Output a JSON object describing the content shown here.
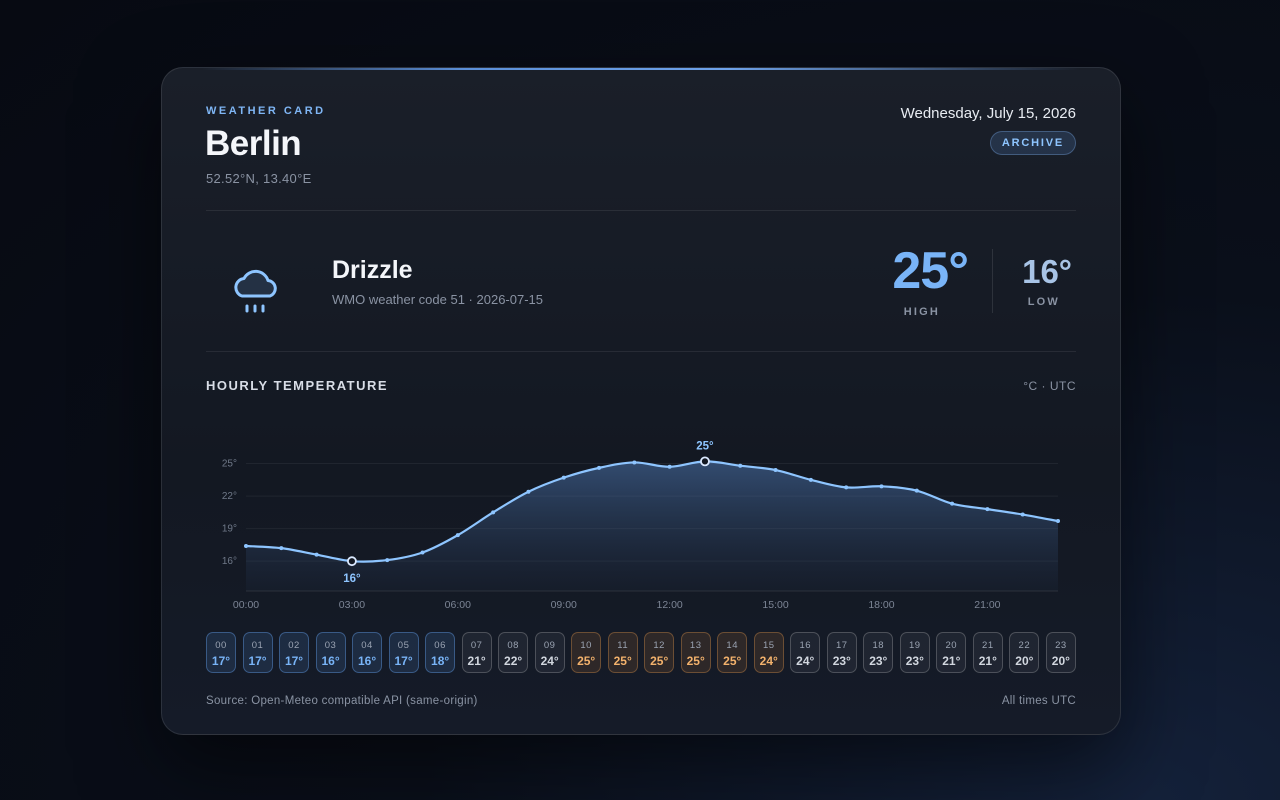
{
  "header": {
    "eyebrow": "WEATHER CARD",
    "city": "Berlin",
    "coordinates": "52.52°N, 13.40°E",
    "date": "Wednesday, July 15, 2026",
    "badge": "ARCHIVE"
  },
  "summary": {
    "condition": "Drizzle",
    "detail": "WMO weather code 51 · 2026-07-15",
    "high": "25°",
    "high_label": "HIGH",
    "low": "16°",
    "low_label": "LOW"
  },
  "chart_data": {
    "type": "line",
    "title": "HOURLY TEMPERATURE",
    "units_note": "°C · UTC",
    "categories": [
      "00:00",
      null,
      null,
      "03:00",
      null,
      null,
      "06:00",
      null,
      null,
      "09:00",
      null,
      null,
      "12:00",
      null,
      null,
      "15:00",
      null,
      null,
      "18:00",
      null,
      null,
      "21:00",
      null,
      null
    ],
    "values": [
      17.4,
      17.2,
      16.6,
      16.0,
      16.1,
      16.8,
      18.4,
      20.5,
      22.4,
      23.7,
      24.6,
      25.1,
      24.7,
      25.2,
      24.8,
      24.4,
      23.5,
      22.8,
      22.9,
      22.5,
      21.3,
      20.8,
      20.3,
      19.7
    ],
    "value_labels": [
      null,
      null,
      null,
      "16°",
      null,
      null,
      null,
      null,
      null,
      null,
      null,
      null,
      null,
      "25°",
      null,
      null,
      null,
      null,
      null,
      null,
      null,
      null,
      null,
      null
    ],
    "color": "#8ec5ff",
    "ylim": [
      13.25,
      28
    ],
    "yticks": [
      {
        "value": 16,
        "label": "16°"
      },
      {
        "value": 19,
        "label": "19°"
      },
      {
        "value": 22,
        "label": "22°"
      },
      {
        "value": 25,
        "label": "25°"
      }
    ],
    "grid": true
  },
  "hourly": [
    {
      "hour": "00",
      "temp": "17°"
    },
    {
      "hour": "01",
      "temp": "17°"
    },
    {
      "hour": "02",
      "temp": "17°"
    },
    {
      "hour": "03",
      "temp": "16°"
    },
    {
      "hour": "04",
      "temp": "16°"
    },
    {
      "hour": "05",
      "temp": "17°"
    },
    {
      "hour": "06",
      "temp": "18°"
    },
    {
      "hour": "07",
      "temp": "21°"
    },
    {
      "hour": "08",
      "temp": "22°"
    },
    {
      "hour": "09",
      "temp": "24°"
    },
    {
      "hour": "10",
      "temp": "25°"
    },
    {
      "hour": "11",
      "temp": "25°"
    },
    {
      "hour": "12",
      "temp": "25°"
    },
    {
      "hour": "13",
      "temp": "25°"
    },
    {
      "hour": "14",
      "temp": "25°"
    },
    {
      "hour": "15",
      "temp": "24°"
    },
    {
      "hour": "16",
      "temp": "24°"
    },
    {
      "hour": "17",
      "temp": "23°"
    },
    {
      "hour": "18",
      "temp": "23°"
    },
    {
      "hour": "19",
      "temp": "23°"
    },
    {
      "hour": "20",
      "temp": "21°"
    },
    {
      "hour": "21",
      "temp": "21°"
    },
    {
      "hour": "22",
      "temp": "20°"
    },
    {
      "hour": "23",
      "temp": "20°"
    }
  ],
  "footer": {
    "source": "Source: Open-Meteo compatible API (same-origin)",
    "note": "All times UTC"
  }
}
